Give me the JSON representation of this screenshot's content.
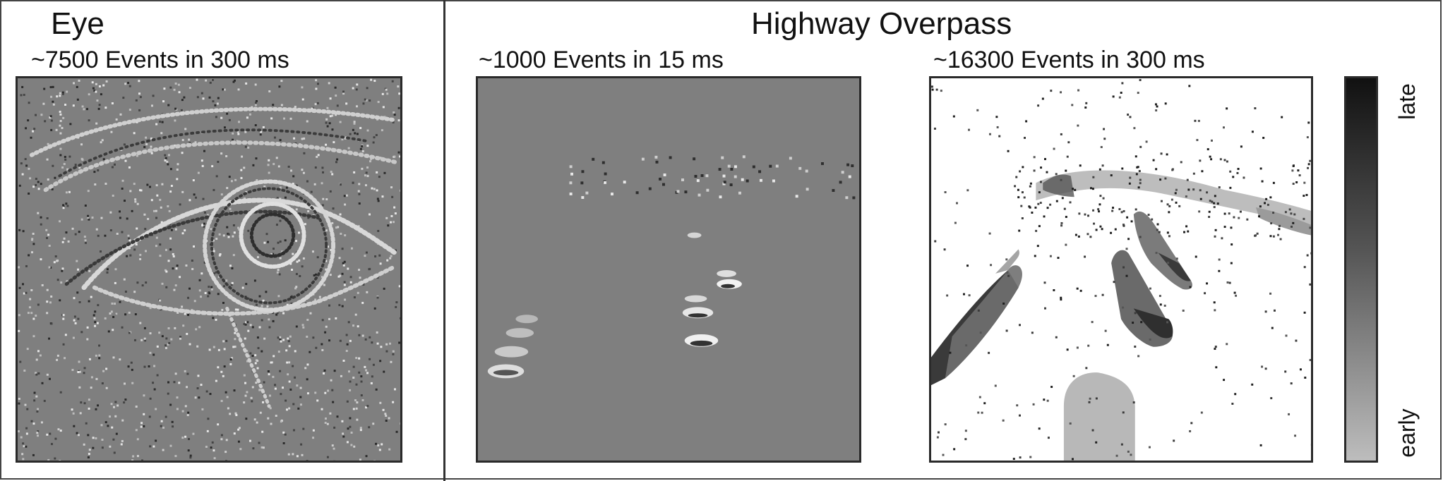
{
  "sections": {
    "eye": {
      "title": "Eye"
    },
    "highway": {
      "title": "Highway Overpass"
    }
  },
  "panels": [
    {
      "id": "eye",
      "title": "~7500 Events in 300 ms",
      "background": "#7f7f7f"
    },
    {
      "id": "highway-short",
      "title": "~1000 Events in 15 ms",
      "background": "#7f7f7f"
    },
    {
      "id": "highway-long",
      "title": "~16300 Events in 300 ms",
      "background": "#ffffff"
    }
  ],
  "colorbar": {
    "top_label": "late",
    "bottom_label": "early",
    "dark": "#111111",
    "light": "#bdbdbd"
  }
}
